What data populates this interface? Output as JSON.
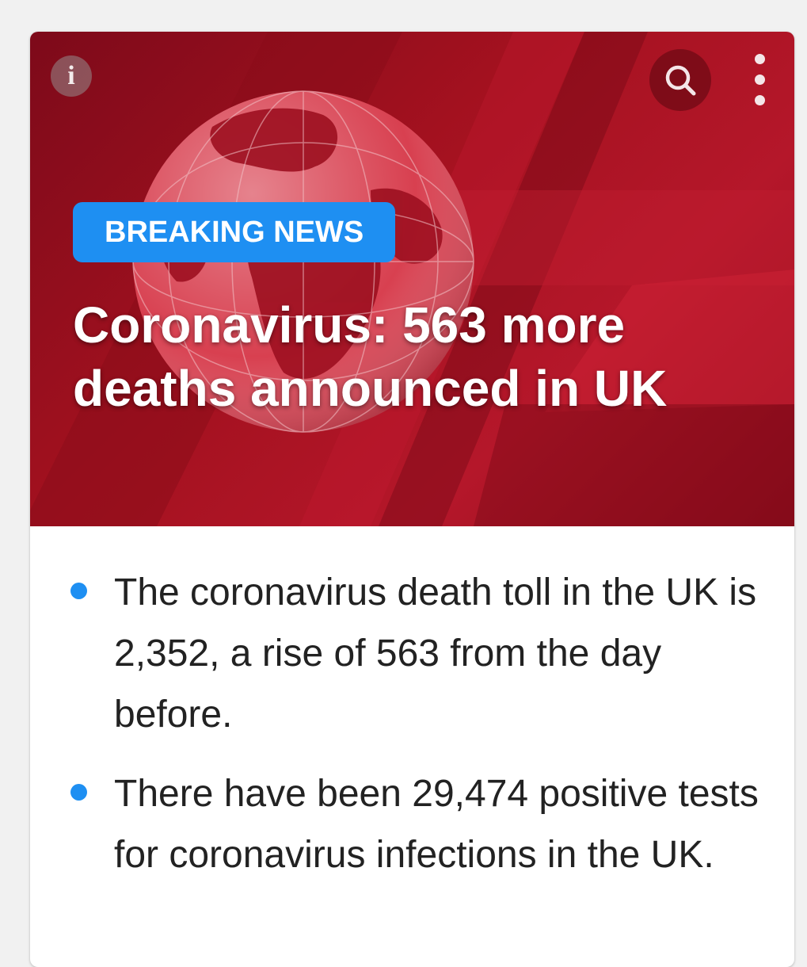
{
  "hero": {
    "badge": "BREAKING NEWS",
    "headline": "Coronavirus: 563 more deaths announced in UK",
    "icons": {
      "info": "info-icon",
      "search": "search-icon",
      "more": "more-vertical-icon"
    },
    "info_glyph": "i"
  },
  "summary": {
    "bullets": [
      "The coronavirus death toll in the UK is 2,352, a rise of 563 from the day before.",
      "There have been 29,474 positive tests for coronavirus infections in the UK."
    ]
  },
  "colors": {
    "accent_blue": "#1e8ff2",
    "hero_red": "#a3111f",
    "text_dark": "#222222"
  }
}
